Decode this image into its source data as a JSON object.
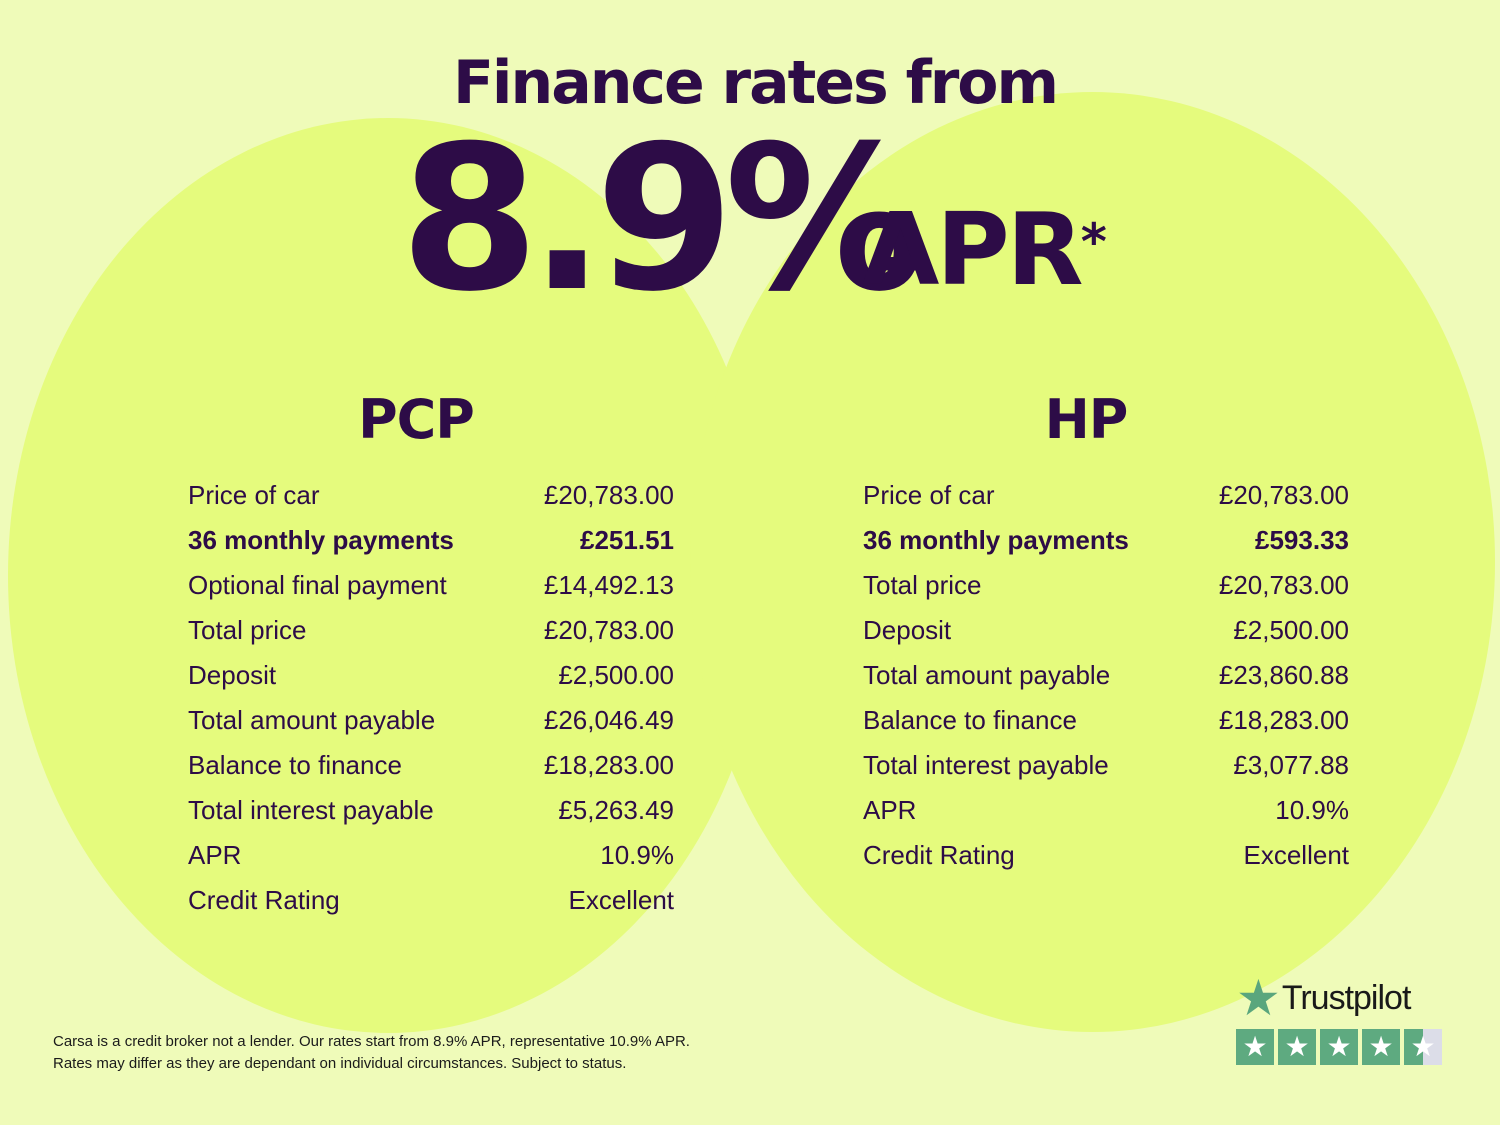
{
  "headline": {
    "title": "Finance rates from",
    "rate": "8.9%",
    "apr": "APR",
    "asterisk": "*"
  },
  "pcp": {
    "heading": "PCP",
    "rows": [
      {
        "label": "Price of car",
        "value": "£20,783.00"
      },
      {
        "label": "36 monthly payments",
        "value": "£251.51",
        "bold": true
      },
      {
        "label": "Optional final payment",
        "value": "£14,492.13"
      },
      {
        "label": "Total price",
        "value": "£20,783.00"
      },
      {
        "label": "Deposit",
        "value": "£2,500.00"
      },
      {
        "label": "Total amount payable",
        "value": "£26,046.49"
      },
      {
        "label": "Balance to finance",
        "value": "£18,283.00"
      },
      {
        "label": "Total interest payable",
        "value": "£5,263.49"
      },
      {
        "label": "APR",
        "value": "10.9%"
      },
      {
        "label": "Credit Rating",
        "value": "Excellent"
      }
    ]
  },
  "hp": {
    "heading": "HP",
    "rows": [
      {
        "label": "Price of car",
        "value": "£20,783.00"
      },
      {
        "label": "36 monthly payments",
        "value": "£593.33",
        "bold": true
      },
      {
        "label": "Total price",
        "value": "£20,783.00"
      },
      {
        "label": "Deposit",
        "value": "£2,500.00"
      },
      {
        "label": "Total amount payable",
        "value": "£23,860.88"
      },
      {
        "label": "Balance to finance",
        "value": "£18,283.00"
      },
      {
        "label": "Total interest payable",
        "value": "£3,077.88"
      },
      {
        "label": "APR",
        "value": "10.9%"
      },
      {
        "label": "Credit Rating",
        "value": "Excellent"
      }
    ]
  },
  "disclaimer": [
    "Carsa is a credit broker not a lender. Our rates start from 8.9% APR, representative 10.9% APR.",
    "Rates may differ as they are dependant on individual circumstances. Subject to status."
  ],
  "trustpilot": {
    "name": "Trustpilot",
    "rating_stars": 4.5,
    "icon": "star-icon",
    "brand_color": "#5eaa80"
  },
  "colors": {
    "background": "#effbb9",
    "circles": "#e5fb7d",
    "text": "#2d0c47"
  }
}
